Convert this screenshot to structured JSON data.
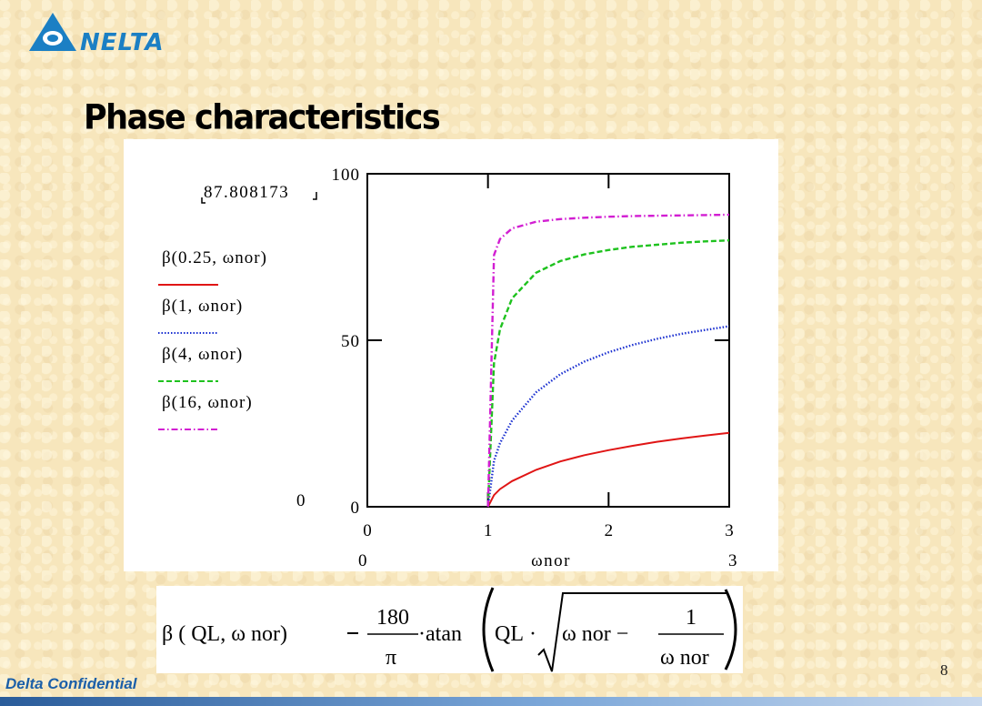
{
  "header": {
    "logo_text": "NELTA",
    "title": "Phase characteristics"
  },
  "chart_data": {
    "type": "line",
    "title": "",
    "xlabel": "ωnor",
    "ylabel": "",
    "xlim": [
      0,
      3
    ],
    "ylim": [
      0,
      100
    ],
    "x_ticks": [
      "0",
      "1",
      "2",
      "3"
    ],
    "y_ticks": [
      "0",
      "50",
      "100"
    ],
    "x_range_labels": [
      "0",
      "3"
    ],
    "y_range_labels": [
      "0",
      "87.808173"
    ],
    "grid": false,
    "legend_position": "left",
    "series": [
      {
        "name": "β(0.25, ωnor)",
        "color": "#e01515",
        "dash": "solid",
        "QL": 0.25,
        "x": [
          1,
          1.05,
          1.1,
          1.2,
          1.4,
          1.6,
          1.8,
          2.0,
          2.2,
          2.4,
          2.6,
          2.8,
          3.0
        ],
        "y": [
          0,
          3.5,
          5.3,
          7.7,
          11.1,
          13.6,
          15.5,
          17.0,
          18.3,
          19.5,
          20.5,
          21.4,
          22.2
        ]
      },
      {
        "name": "β(1, ωnor)",
        "color": "#1a2fd0",
        "dash": "dot",
        "QL": 1,
        "x": [
          1,
          1.05,
          1.1,
          1.2,
          1.4,
          1.6,
          1.8,
          2.0,
          2.2,
          2.4,
          2.6,
          2.8,
          3.0
        ],
        "y": [
          0,
          13.8,
          19.1,
          25.9,
          34.4,
          39.8,
          43.6,
          46.4,
          48.6,
          50.4,
          51.9,
          53.1,
          54.2
        ]
      },
      {
        "name": "β(4, ωnor)",
        "color": "#1ec21e",
        "dash": "dash",
        "QL": 4,
        "x": [
          1,
          1.05,
          1.1,
          1.2,
          1.4,
          1.6,
          1.8,
          2.0,
          2.2,
          2.4,
          2.6,
          2.8,
          3.0
        ],
        "y": [
          0,
          43.1,
          53.3,
          62.6,
          70.3,
          73.8,
          75.8,
          77.1,
          78.1,
          78.7,
          79.3,
          79.7,
          80.0
        ]
      },
      {
        "name": "β(16, ωnor)",
        "color": "#d21ed2",
        "dash": "dashdot",
        "QL": 16,
        "x": [
          1,
          1.05,
          1.1,
          1.2,
          1.4,
          1.6,
          1.8,
          2.0,
          2.2,
          2.4,
          2.6,
          2.8,
          3.0
        ],
        "y": [
          0,
          75.6,
          80.4,
          83.6,
          85.6,
          86.4,
          86.8,
          87.1,
          87.3,
          87.4,
          87.5,
          87.6,
          87.7
        ]
      }
    ]
  },
  "formula": {
    "lhs": "β ( QL, ω nor)",
    "num": "180",
    "den": "π",
    "func": "·atan",
    "ql": "QL",
    "dot": "·",
    "w1": "ω nor −",
    "inner_num": "1",
    "inner_den": "ω nor"
  },
  "footer": {
    "confidential": "Delta Confidential",
    "page_number": "8"
  }
}
